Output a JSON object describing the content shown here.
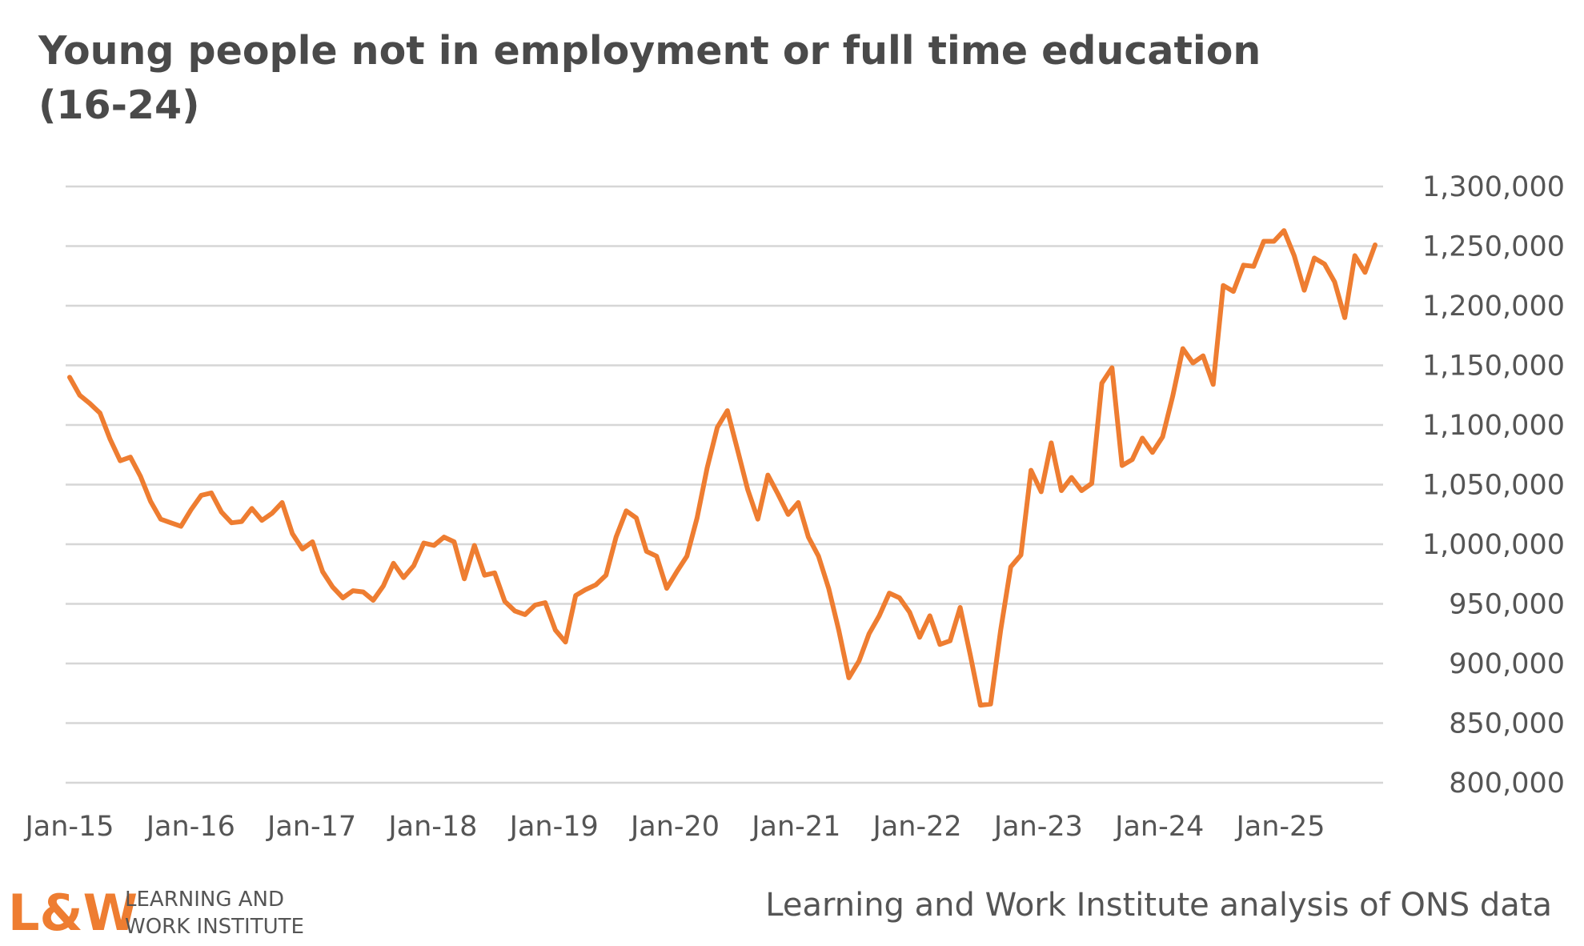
{
  "title": "Young people not in employment or full time education (16-24)",
  "source": "Learning and Work Institute analysis of ONS data",
  "logo": {
    "mark": "L&W",
    "line1": "LEARNING AND",
    "line2": "WORK INSTITUTE",
    "color": "#ee7d31",
    "text_color": "#555555"
  },
  "chart_data": {
    "type": "line",
    "title": "Young people not in employment or full time education (16-24)",
    "xlabel": "",
    "ylabel": "",
    "x_start": "Jan-15",
    "x_interval": "month",
    "x_tick_labels": [
      "Jan-15",
      "Jan-16",
      "Jan-17",
      "Jan-18",
      "Jan-19",
      "Jan-20",
      "Jan-21",
      "Jan-22",
      "Jan-23",
      "Jan-24",
      "Jan-25"
    ],
    "y_tick_labels": [
      "1,300,000",
      "1,250,000",
      "1,200,000",
      "1,150,000",
      "1,100,000",
      "1,050,000",
      "1,000,000",
      "950,000",
      "900,000",
      "850,000",
      "800,000"
    ],
    "ylim": [
      800000,
      1300000
    ],
    "y_axis_position": "right",
    "grid": true,
    "legend": "none",
    "line_color": "#ee7d31",
    "series": [
      {
        "values": [
          1140000,
          1125000,
          1118000,
          1110000,
          1088000,
          1070000,
          1073000,
          1057000,
          1036000,
          1021000,
          1018000,
          1015000,
          1029000,
          1041000,
          1043000,
          1027000,
          1018000,
          1019000,
          1030000,
          1020000,
          1026000,
          1035000,
          1009000,
          996000,
          1002000,
          977000,
          964000,
          955000,
          961000,
          960000,
          953000,
          965000,
          984000,
          972000,
          982000,
          1001000,
          999000,
          1006000,
          1002000,
          971000,
          999000,
          974000,
          976000,
          952000,
          944000,
          941000,
          949000,
          951000,
          928000,
          918000,
          957000,
          962000,
          966000,
          974000,
          1006000,
          1028000,
          1022000,
          994000,
          990000,
          963000,
          977000,
          990000,
          1022000,
          1064000,
          1098000,
          1112000,
          1079000,
          1046000,
          1021000,
          1058000,
          1042000,
          1025000,
          1035000,
          1006000,
          990000,
          963000,
          928000,
          888000,
          902000,
          925000,
          940000,
          959000,
          955000,
          943000,
          922000,
          940000,
          916000,
          919000,
          947000,
          907000,
          865000,
          866000,
          928000,
          981000,
          991000,
          1062000,
          1044000,
          1085000,
          1045000,
          1056000,
          1045000,
          1051000,
          1135000,
          1148000,
          1066000,
          1071000,
          1089000,
          1077000,
          1090000,
          1124000,
          1164000,
          1152000,
          1158000,
          1134000,
          1217000,
          1212000,
          1234000,
          1233000,
          1254000,
          1254000,
          1263000,
          1242000,
          1213000,
          1240000,
          1235000,
          1220000,
          1190000,
          1242000,
          1228000,
          1251000
        ]
      }
    ]
  }
}
